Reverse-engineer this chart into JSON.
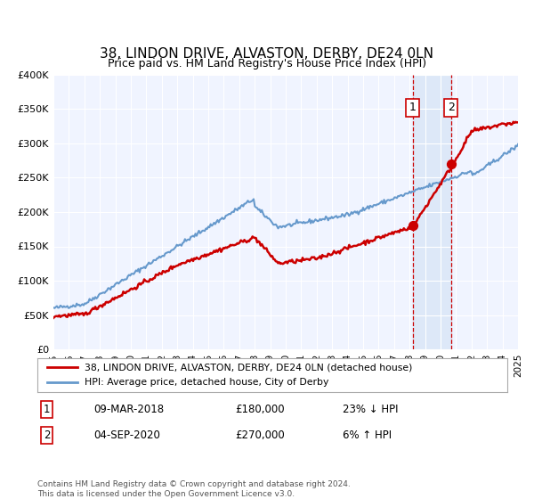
{
  "title": "38, LINDON DRIVE, ALVASTON, DERBY, DE24 0LN",
  "subtitle": "Price paid vs. HM Land Registry's House Price Index (HPI)",
  "xlim": [
    1995,
    2025
  ],
  "ylim": [
    0,
    400000
  ],
  "yticks": [
    0,
    50000,
    100000,
    150000,
    200000,
    250000,
    300000,
    350000,
    400000
  ],
  "ytick_labels": [
    "£0",
    "£50K",
    "£100K",
    "£150K",
    "£200K",
    "£250K",
    "£300K",
    "£350K",
    "£400K"
  ],
  "xticks": [
    1995,
    1996,
    1997,
    1998,
    1999,
    2000,
    2001,
    2002,
    2003,
    2004,
    2005,
    2006,
    2007,
    2008,
    2009,
    2010,
    2011,
    2012,
    2013,
    2014,
    2015,
    2016,
    2017,
    2018,
    2019,
    2020,
    2021,
    2022,
    2023,
    2024,
    2025
  ],
  "transaction1_x": 2018.19,
  "transaction1_y": 180000,
  "transaction1_label": "1",
  "transaction2_x": 2020.67,
  "transaction2_y": 270000,
  "transaction2_label": "2",
  "legend_line1": "38, LINDON DRIVE, ALVASTON, DERBY, DE24 0LN (detached house)",
  "legend_line2": "HPI: Average price, detached house, City of Derby",
  "annotation1_label": "1",
  "annotation1_date": "09-MAR-2018",
  "annotation1_price": "£180,000",
  "annotation1_hpi": "23% ↓ HPI",
  "annotation2_label": "2",
  "annotation2_date": "04-SEP-2020",
  "annotation2_price": "£270,000",
  "annotation2_hpi": "6% ↑ HPI",
  "footer": "Contains HM Land Registry data © Crown copyright and database right 2024.\nThis data is licensed under the Open Government Licence v3.0.",
  "price_color": "#cc0000",
  "hpi_color": "#6699cc",
  "bg_color": "#f0f4ff",
  "shade_color": "#dde8f8",
  "title_fontsize": 11,
  "subtitle_fontsize": 9
}
